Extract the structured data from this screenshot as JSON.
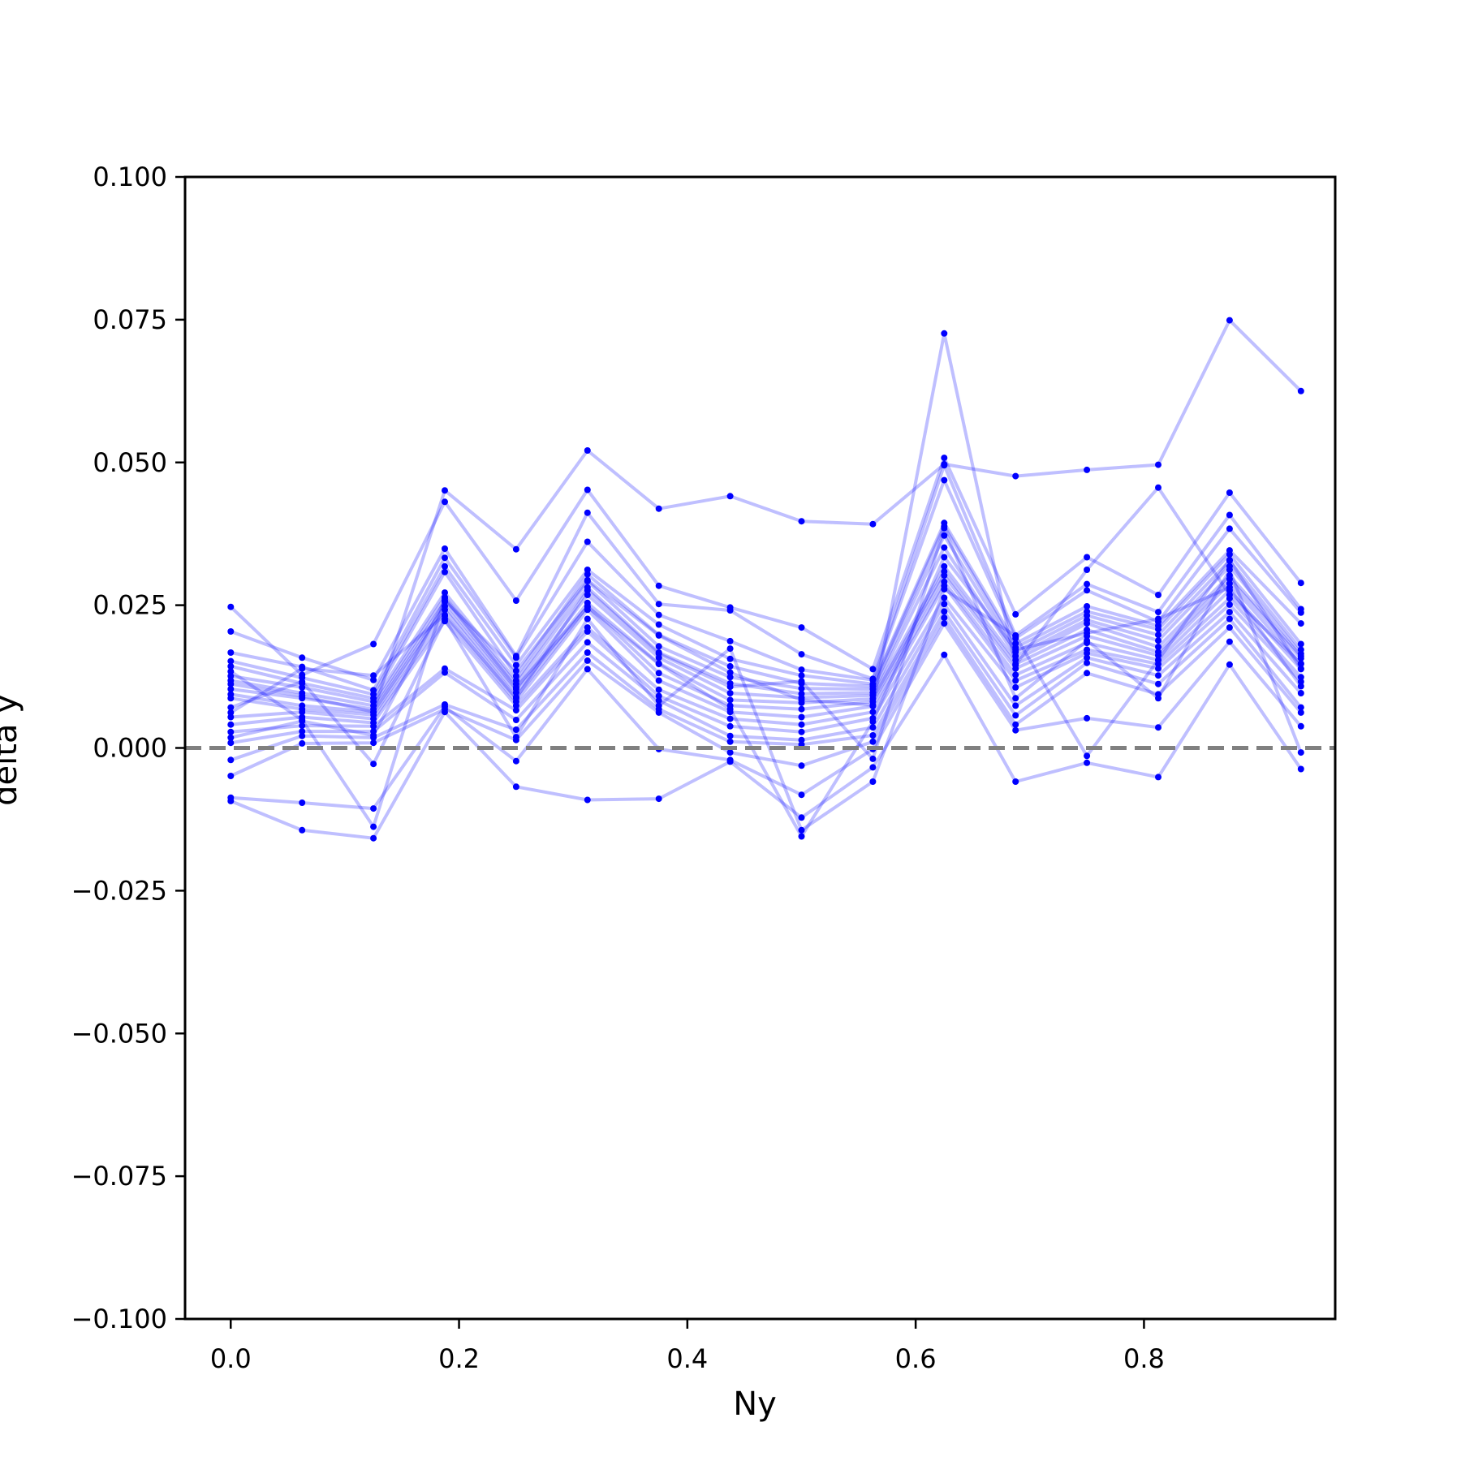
{
  "chart_data": {
    "type": "line",
    "title": "",
    "xlabel": "Ny",
    "ylabel": "delta y",
    "xlim": [
      -0.04,
      0.9675
    ],
    "ylim": [
      -0.1,
      0.1
    ],
    "x_ticks": [
      0.0,
      0.2,
      0.4,
      0.6,
      0.8
    ],
    "x_tick_labels": [
      "0.0",
      "0.2",
      "0.4",
      "0.6",
      "0.8"
    ],
    "y_ticks": [
      -0.1,
      -0.075,
      -0.05,
      -0.025,
      0.0,
      0.025,
      0.05,
      0.075,
      0.1
    ],
    "y_tick_labels": [
      "−0.100",
      "−0.075",
      "−0.050",
      "−0.025",
      "0.000",
      "0.025",
      "0.050",
      "0.075",
      "0.100"
    ],
    "reference_line": {
      "y": 0.0,
      "style": "dashed",
      "color": "#808080"
    },
    "line_color": "#0000ff",
    "line_opacity": 0.25,
    "marker_color": "#0000ff",
    "grid": false,
    "legend": "none",
    "x": [
      0.0,
      0.0625,
      0.125,
      0.1875,
      0.25,
      0.3125,
      0.375,
      0.4375,
      0.5,
      0.5625,
      0.625,
      0.6875,
      0.75,
      0.8125,
      0.875,
      0.9375
    ],
    "series": [
      {
        "values": [
          0.0112,
          0.0091,
          0.0063,
          0.0451,
          0.0348,
          0.0521,
          0.0419,
          0.0441,
          0.0397,
          0.0392,
          0.0497,
          0.0476,
          0.0487,
          0.0496,
          0.0749,
          0.0625
        ]
      },
      {
        "values": [
          0.0018,
          0.0047,
          0.0022,
          0.0258,
          0.0135,
          0.0294,
          0.0197,
          0.0132,
          0.0084,
          0.0075,
          0.0726,
          0.0145,
          0.0312,
          0.0456,
          0.0268,
          0.0148
        ]
      },
      {
        "values": [
          0.0247,
          0.0128,
          0.0182,
          0.0431,
          0.0258,
          0.0452,
          0.0284,
          0.0246,
          0.0211,
          0.0138,
          0.0508,
          0.0234,
          0.0334,
          0.0268,
          0.0447,
          0.0289
        ]
      },
      {
        "values": [
          0.0204,
          0.0158,
          0.0119,
          0.0349,
          0.0161,
          0.0412,
          0.0252,
          0.0241,
          0.0164,
          0.0121,
          0.0495,
          0.0197,
          0.0287,
          0.0238,
          0.0408,
          0.0243
        ]
      },
      {
        "values": [
          0.0167,
          0.0142,
          0.0101,
          0.0333,
          0.0158,
          0.0361,
          0.0233,
          0.0187,
          0.0137,
          0.0119,
          0.0469,
          0.0192,
          0.0276,
          0.0221,
          0.0384,
          0.0237
        ]
      },
      {
        "values": [
          0.0152,
          0.0123,
          0.0094,
          0.0318,
          0.0145,
          0.0312,
          0.0216,
          0.0156,
          0.0127,
          0.0112,
          0.0394,
          0.0183,
          0.0248,
          0.0214,
          0.0346,
          0.0218
        ]
      },
      {
        "values": [
          0.0143,
          0.0113,
          0.0087,
          0.0308,
          0.0126,
          0.0304,
          0.0198,
          0.0143,
          0.0113,
          0.0108,
          0.0388,
          0.0176,
          0.0239,
          0.0208,
          0.0339,
          0.0182
        ]
      },
      {
        "values": [
          0.0126,
          0.0106,
          0.0081,
          0.0272,
          0.0118,
          0.0292,
          0.0178,
          0.0124,
          0.0104,
          0.0103,
          0.0372,
          0.0168,
          0.0232,
          0.0198,
          0.0328,
          0.0172
        ]
      },
      {
        "values": [
          0.0118,
          0.0096,
          0.0074,
          0.0264,
          0.0112,
          0.0281,
          0.0167,
          0.0113,
          0.0095,
          0.0097,
          0.0351,
          0.0161,
          0.0224,
          0.0188,
          0.0318,
          0.0165
        ]
      },
      {
        "values": [
          0.0103,
          0.0087,
          0.0068,
          0.0256,
          0.0103,
          0.0268,
          0.0158,
          0.0096,
          0.0088,
          0.0092,
          0.0318,
          0.0154,
          0.0218,
          0.0177,
          0.0302,
          0.0161
        ]
      },
      {
        "values": [
          0.0094,
          0.0074,
          0.0063,
          0.0248,
          0.0097,
          0.0254,
          0.0148,
          0.0084,
          0.0079,
          0.0086,
          0.0309,
          0.0147,
          0.0207,
          0.0168,
          0.0296,
          0.0157
        ]
      },
      {
        "values": [
          0.0087,
          0.0068,
          0.0058,
          0.0242,
          0.0089,
          0.0248,
          0.0131,
          0.0074,
          0.0068,
          0.0081,
          0.0302,
          0.0139,
          0.0196,
          0.0162,
          0.0288,
          0.0147
        ]
      },
      {
        "values": [
          0.0054,
          0.0063,
          0.0051,
          0.0231,
          0.0081,
          0.0242,
          0.0118,
          0.0063,
          0.0054,
          0.0073,
          0.0291,
          0.0128,
          0.0184,
          0.0154,
          0.0276,
          0.0138
        ]
      },
      {
        "values": [
          0.0041,
          0.0054,
          0.0044,
          0.0222,
          0.0074,
          0.0211,
          0.0102,
          0.0051,
          0.0041,
          0.0063,
          0.0284,
          0.0118,
          0.0172,
          0.0147,
          0.0262,
          0.0124
        ]
      },
      {
        "values": [
          0.0028,
          0.0039,
          0.0038,
          0.0139,
          0.0066,
          0.0204,
          0.0091,
          0.0038,
          0.0028,
          0.0052,
          0.0263,
          0.0106,
          0.0166,
          0.0139,
          0.0251,
          0.0116
        ]
      },
      {
        "values": [
          0.0009,
          0.0029,
          0.0029,
          0.0132,
          0.0049,
          0.0185,
          0.0083,
          0.0021,
          0.0014,
          0.0036,
          0.0252,
          0.0074,
          0.0158,
          0.0127,
          0.0238,
          0.0096
        ]
      },
      {
        "values": [
          -0.0021,
          0.0021,
          0.0018,
          0.0076,
          0.0032,
          0.0167,
          0.0068,
          0.0011,
          0.0006,
          0.0022,
          0.0239,
          0.0057,
          0.0149,
          0.0112,
          0.0226,
          0.0071
        ]
      },
      {
        "values": [
          -0.0049,
          0.0008,
          0.0009,
          0.0068,
          0.0014,
          0.0153,
          0.0062,
          -0.0008,
          -0.0031,
          0.0011,
          0.0228,
          0.0041,
          0.0131,
          0.0094,
          0.0211,
          0.0062
        ]
      },
      {
        "values": [
          -0.0087,
          -0.0096,
          -0.0106,
          0.0072,
          -0.0023,
          0.0138,
          -0.0002,
          -0.0021,
          -0.0082,
          -0.0002,
          0.0218,
          0.0031,
          0.0052,
          0.0036,
          0.0186,
          0.0038
        ]
      },
      {
        "values": [
          -0.0093,
          -0.0144,
          -0.0158,
          0.0063,
          -0.0068,
          -0.0091,
          -0.0089,
          -0.0024,
          -0.0122,
          -0.0034,
          0.0163,
          -0.0059,
          -0.0026,
          -0.0051,
          0.0146,
          -0.0037
        ]
      },
      {
        "values": [
          0.0071,
          0.0116,
          -0.0028,
          0.0226,
          0.0019,
          0.0226,
          0.0074,
          0.0174,
          -0.0144,
          -0.0059,
          0.0278,
          0.0196,
          -0.0014,
          0.0154,
          0.0329,
          0.0139
        ]
      },
      {
        "values": [
          0.0134,
          0.0049,
          -0.0138,
          0.0262,
          0.0106,
          0.0247,
          0.0147,
          0.0068,
          -0.0155,
          0.0046,
          0.0334,
          0.0172,
          0.0201,
          0.0226,
          0.0281,
          0.0108
        ]
      },
      {
        "values": [
          0.0062,
          0.0139,
          0.0127,
          0.0233,
          0.0087,
          0.0276,
          0.0165,
          0.0107,
          0.0117,
          -0.0019,
          0.0385,
          0.0087,
          0.0188,
          0.0087,
          0.0312,
          -0.0008
        ]
      }
    ]
  }
}
